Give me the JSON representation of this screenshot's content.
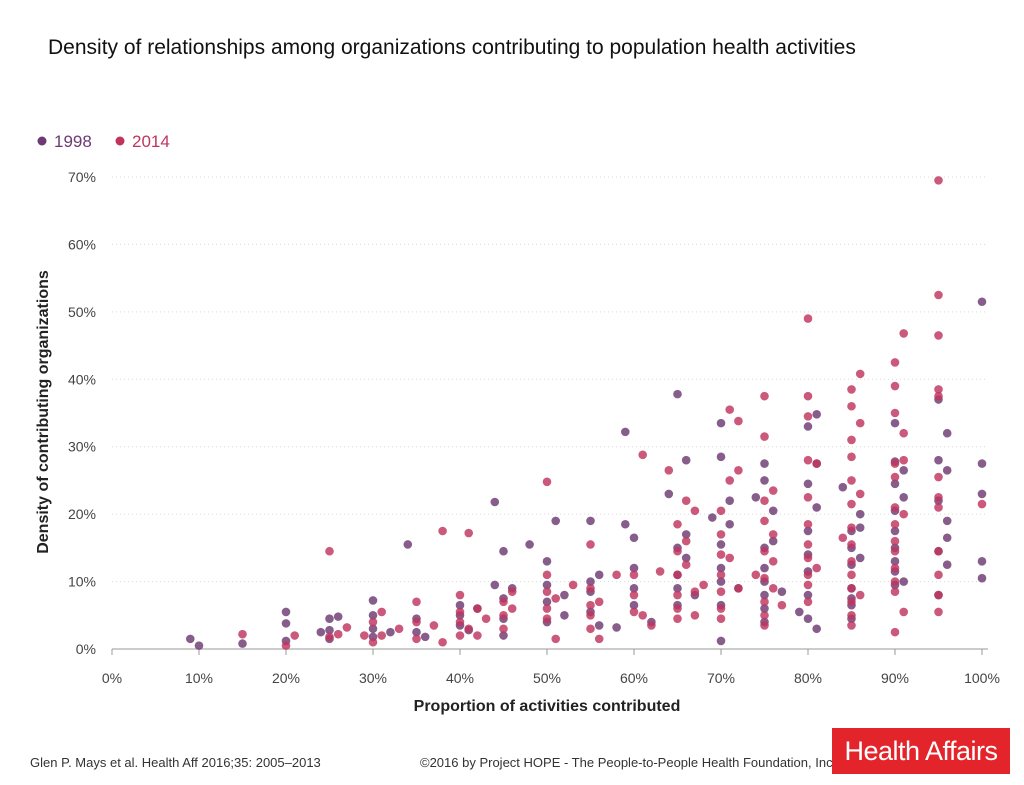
{
  "title": "Density of relationships among organizations contributing to population health activities",
  "source": "Glen P. Mays et al. Health Aff 2016;35: 2005–2013",
  "copyright": "©2016 by Project HOPE - The People-to-People Health Foundation, Inc.",
  "logo_text": "Health Affairs",
  "chart_data": {
    "type": "scatter",
    "title": "Density of relationships among organizations contributing to population health activities",
    "xlabel": "Proportion of activities contributed",
    "ylabel": "Density of contributing organizations",
    "xlim": [
      0,
      100
    ],
    "ylim": [
      0,
      70
    ],
    "xticks": [
      "0%",
      "10%",
      "20%",
      "30%",
      "40%",
      "50%",
      "60%",
      "70%",
      "80%",
      "90%",
      "100%"
    ],
    "yticks": [
      "0%",
      "10%",
      "20%",
      "30%",
      "40%",
      "50%",
      "60%",
      "70%"
    ],
    "grid": true,
    "legend_position": "top-left",
    "series": [
      {
        "name": "1998",
        "color": "#6d3a72",
        "points": [
          [
            9,
            1.5
          ],
          [
            10,
            0.5
          ],
          [
            15,
            0.8
          ],
          [
            20,
            5.5
          ],
          [
            20,
            3.8
          ],
          [
            20,
            1.2
          ],
          [
            24,
            2.5
          ],
          [
            25,
            4.5
          ],
          [
            25,
            2.8
          ],
          [
            25,
            1.5
          ],
          [
            26,
            4.8
          ],
          [
            30,
            7.2
          ],
          [
            30,
            5.0
          ],
          [
            30,
            3.0
          ],
          [
            30,
            1.8
          ],
          [
            32,
            2.5
          ],
          [
            34,
            15.5
          ],
          [
            35,
            4.5
          ],
          [
            35,
            2.5
          ],
          [
            36,
            1.8
          ],
          [
            40,
            6.5
          ],
          [
            40,
            5.0
          ],
          [
            40,
            3.5
          ],
          [
            41,
            2.8
          ],
          [
            42,
            6.0
          ],
          [
            44,
            21.8
          ],
          [
            44,
            9.5
          ],
          [
            45,
            14.5
          ],
          [
            45,
            7.5
          ],
          [
            45,
            4.5
          ],
          [
            45,
            2.0
          ],
          [
            46,
            9.0
          ],
          [
            48,
            15.5
          ],
          [
            50,
            13.0
          ],
          [
            50,
            9.5
          ],
          [
            50,
            7.0
          ],
          [
            50,
            4.0
          ],
          [
            51,
            19.0
          ],
          [
            52,
            8.0
          ],
          [
            52,
            5.0
          ],
          [
            55,
            19.0
          ],
          [
            55,
            10.0
          ],
          [
            55,
            8.5
          ],
          [
            55,
            5.5
          ],
          [
            56,
            11.0
          ],
          [
            56,
            3.5
          ],
          [
            58,
            3.2
          ],
          [
            59,
            32.2
          ],
          [
            59,
            18.5
          ],
          [
            60,
            16.5
          ],
          [
            60,
            12.0
          ],
          [
            60,
            9.0
          ],
          [
            60,
            6.5
          ],
          [
            62,
            4.0
          ],
          [
            64,
            23.0
          ],
          [
            65,
            37.8
          ],
          [
            65,
            15.0
          ],
          [
            65,
            11.0
          ],
          [
            65,
            9.0
          ],
          [
            65,
            6.5
          ],
          [
            66,
            28.0
          ],
          [
            66,
            17.0
          ],
          [
            66,
            13.5
          ],
          [
            67,
            8.0
          ],
          [
            69,
            19.5
          ],
          [
            70,
            33.5
          ],
          [
            70,
            28.5
          ],
          [
            70,
            15.5
          ],
          [
            70,
            12.0
          ],
          [
            70,
            10.0
          ],
          [
            70,
            6.5
          ],
          [
            70,
            1.2
          ],
          [
            71,
            22.0
          ],
          [
            71,
            18.5
          ],
          [
            72,
            9.0
          ],
          [
            74,
            22.5
          ],
          [
            75,
            27.5
          ],
          [
            75,
            25.0
          ],
          [
            75,
            15.0
          ],
          [
            75,
            12.0
          ],
          [
            75,
            10.0
          ],
          [
            75,
            8.0
          ],
          [
            75,
            6.0
          ],
          [
            75,
            4.0
          ],
          [
            76,
            20.5
          ],
          [
            76,
            16.0
          ],
          [
            77,
            8.5
          ],
          [
            79,
            5.5
          ],
          [
            80,
            33.0
          ],
          [
            80,
            24.5
          ],
          [
            80,
            17.5
          ],
          [
            80,
            14.0
          ],
          [
            80,
            11.5
          ],
          [
            80,
            8.0
          ],
          [
            80,
            4.5
          ],
          [
            81,
            34.8
          ],
          [
            81,
            27.5
          ],
          [
            81,
            21.0
          ],
          [
            81,
            3.0
          ],
          [
            84,
            24.0
          ],
          [
            85,
            17.5
          ],
          [
            85,
            15.0
          ],
          [
            85,
            12.5
          ],
          [
            85,
            9.0
          ],
          [
            85,
            7.5
          ],
          [
            85,
            6.5
          ],
          [
            85,
            4.5
          ],
          [
            86,
            20.0
          ],
          [
            86,
            18.0
          ],
          [
            86,
            13.5
          ],
          [
            90,
            33.5
          ],
          [
            90,
            27.8
          ],
          [
            90,
            24.5
          ],
          [
            90,
            20.5
          ],
          [
            90,
            17.5
          ],
          [
            90,
            15.0
          ],
          [
            90,
            13.0
          ],
          [
            90,
            11.5
          ],
          [
            90,
            9.5
          ],
          [
            91,
            26.5
          ],
          [
            91,
            22.5
          ],
          [
            91,
            10.0
          ],
          [
            95,
            37.0
          ],
          [
            95,
            28.0
          ],
          [
            95,
            22.0
          ],
          [
            95,
            14.5
          ],
          [
            95,
            8.0
          ],
          [
            96,
            32.0
          ],
          [
            96,
            26.5
          ],
          [
            96,
            19.0
          ],
          [
            96,
            16.5
          ],
          [
            96,
            12.5
          ],
          [
            100,
            51.5
          ],
          [
            100,
            27.5
          ],
          [
            100,
            23.0
          ],
          [
            100,
            13.0
          ],
          [
            100,
            10.5
          ]
        ]
      },
      {
        "name": "2014",
        "color": "#c0345e",
        "points": [
          [
            15,
            2.2
          ],
          [
            20,
            0.5
          ],
          [
            21,
            2.0
          ],
          [
            25,
            14.5
          ],
          [
            25,
            1.8
          ],
          [
            26,
            2.2
          ],
          [
            27,
            3.2
          ],
          [
            29,
            2.0
          ],
          [
            30,
            4.0
          ],
          [
            30,
            1.0
          ],
          [
            31,
            5.5
          ],
          [
            31,
            2.0
          ],
          [
            33,
            3.0
          ],
          [
            35,
            7.0
          ],
          [
            35,
            4.0
          ],
          [
            35,
            1.5
          ],
          [
            37,
            3.5
          ],
          [
            38,
            17.5
          ],
          [
            38,
            1.0
          ],
          [
            40,
            8.0
          ],
          [
            40,
            5.5
          ],
          [
            40,
            4.0
          ],
          [
            40,
            2.0
          ],
          [
            41,
            17.2
          ],
          [
            41,
            3.0
          ],
          [
            42,
            6.0
          ],
          [
            42,
            2.0
          ],
          [
            43,
            4.5
          ],
          [
            45,
            7.0
          ],
          [
            45,
            5.0
          ],
          [
            45,
            3.0
          ],
          [
            46,
            8.5
          ],
          [
            46,
            6.0
          ],
          [
            50,
            24.8
          ],
          [
            50,
            11.0
          ],
          [
            50,
            8.5
          ],
          [
            50,
            6.0
          ],
          [
            50,
            4.5
          ],
          [
            51,
            7.5
          ],
          [
            51,
            1.5
          ],
          [
            53,
            9.5
          ],
          [
            55,
            15.5
          ],
          [
            55,
            9.0
          ],
          [
            55,
            6.5
          ],
          [
            55,
            5.0
          ],
          [
            55,
            3.0
          ],
          [
            56,
            7.0
          ],
          [
            56,
            1.5
          ],
          [
            58,
            11.0
          ],
          [
            60,
            11.0
          ],
          [
            60,
            8.0
          ],
          [
            60,
            5.5
          ],
          [
            61,
            28.8
          ],
          [
            61,
            5.0
          ],
          [
            62,
            3.5
          ],
          [
            63,
            11.5
          ],
          [
            64,
            26.5
          ],
          [
            65,
            18.5
          ],
          [
            65,
            14.5
          ],
          [
            65,
            11.0
          ],
          [
            65,
            8.0
          ],
          [
            65,
            6.0
          ],
          [
            65,
            4.5
          ],
          [
            66,
            22.0
          ],
          [
            66,
            16.0
          ],
          [
            66,
            12.5
          ],
          [
            67,
            20.5
          ],
          [
            67,
            8.5
          ],
          [
            67,
            5.0
          ],
          [
            68,
            9.5
          ],
          [
            70,
            20.5
          ],
          [
            70,
            17.0
          ],
          [
            70,
            14.0
          ],
          [
            70,
            11.0
          ],
          [
            70,
            8.5
          ],
          [
            70,
            6.0
          ],
          [
            70,
            4.5
          ],
          [
            71,
            35.5
          ],
          [
            71,
            25.0
          ],
          [
            71,
            13.5
          ],
          [
            72,
            33.8
          ],
          [
            72,
            26.5
          ],
          [
            72,
            9.0
          ],
          [
            74,
            11.0
          ],
          [
            75,
            37.5
          ],
          [
            75,
            31.5
          ],
          [
            75,
            22.0
          ],
          [
            75,
            19.0
          ],
          [
            75,
            14.5
          ],
          [
            75,
            10.5
          ],
          [
            75,
            7.0
          ],
          [
            75,
            5.0
          ],
          [
            75,
            3.5
          ],
          [
            76,
            23.5
          ],
          [
            76,
            17.0
          ],
          [
            76,
            13.0
          ],
          [
            76,
            9.0
          ],
          [
            77,
            6.5
          ],
          [
            80,
            49.0
          ],
          [
            80,
            37.5
          ],
          [
            80,
            34.5
          ],
          [
            80,
            28.0
          ],
          [
            80,
            22.5
          ],
          [
            80,
            18.5
          ],
          [
            80,
            15.5
          ],
          [
            80,
            13.5
          ],
          [
            80,
            11.0
          ],
          [
            80,
            9.5
          ],
          [
            80,
            7.0
          ],
          [
            81,
            27.5
          ],
          [
            81,
            12.0
          ],
          [
            84,
            16.5
          ],
          [
            85,
            38.5
          ],
          [
            85,
            36.0
          ],
          [
            85,
            31.0
          ],
          [
            85,
            28.5
          ],
          [
            85,
            25.0
          ],
          [
            85,
            21.5
          ],
          [
            85,
            18.0
          ],
          [
            85,
            15.5
          ],
          [
            85,
            13.0
          ],
          [
            85,
            11.0
          ],
          [
            85,
            9.0
          ],
          [
            85,
            7.0
          ],
          [
            85,
            5.0
          ],
          [
            85,
            3.5
          ],
          [
            86,
            40.8
          ],
          [
            86,
            33.5
          ],
          [
            86,
            23.0
          ],
          [
            86,
            8.0
          ],
          [
            90,
            42.5
          ],
          [
            90,
            39.0
          ],
          [
            90,
            35.0
          ],
          [
            90,
            27.5
          ],
          [
            90,
            25.5
          ],
          [
            90,
            21.0
          ],
          [
            90,
            18.5
          ],
          [
            90,
            16.0
          ],
          [
            90,
            14.5
          ],
          [
            90,
            12.0
          ],
          [
            90,
            10.0
          ],
          [
            90,
            8.5
          ],
          [
            90,
            2.5
          ],
          [
            91,
            46.8
          ],
          [
            91,
            32.0
          ],
          [
            91,
            28.0
          ],
          [
            91,
            20.0
          ],
          [
            91,
            5.5
          ],
          [
            95,
            69.5
          ],
          [
            95,
            52.5
          ],
          [
            95,
            46.5
          ],
          [
            95,
            38.5
          ],
          [
            95,
            37.5
          ],
          [
            95,
            25.5
          ],
          [
            95,
            22.5
          ],
          [
            95,
            21.0
          ],
          [
            95,
            14.5
          ],
          [
            95,
            11.0
          ],
          [
            95,
            8.0
          ],
          [
            95,
            5.5
          ],
          [
            100,
            21.5
          ]
        ]
      }
    ]
  }
}
